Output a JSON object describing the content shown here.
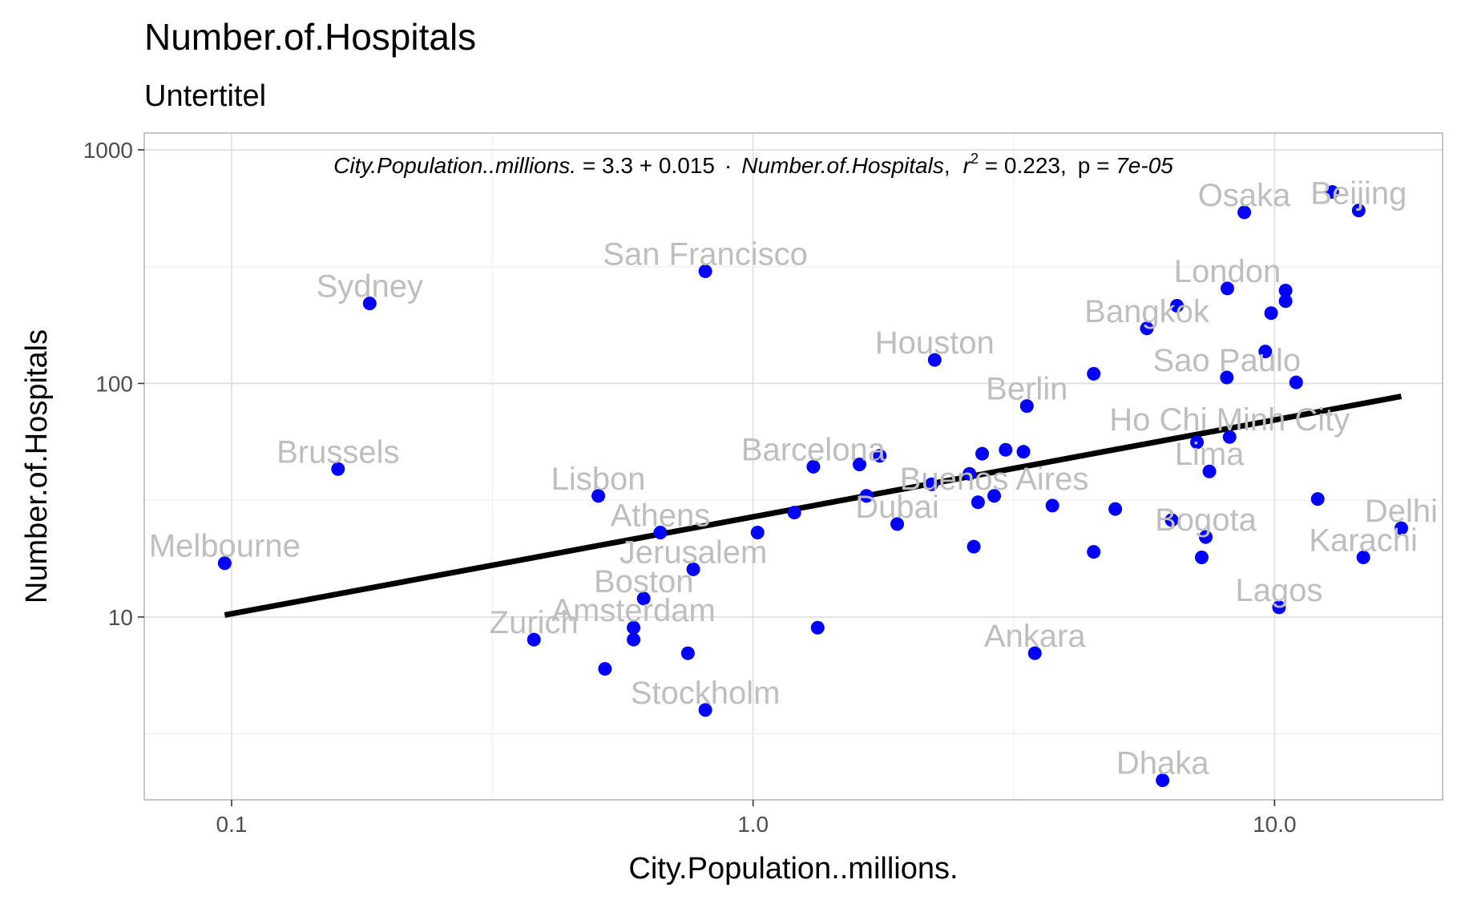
{
  "chart_data": {
    "type": "scatter",
    "title": "Number.of.Hospitals",
    "subtitle": "Untertitel",
    "xlabel": "City.Population..millions.",
    "ylabel": "Number.of.Hospitals",
    "x_scale": "log10",
    "y_scale": "log10",
    "xlim": [
      0.068,
      21.0
    ],
    "ylim": [
      1.65,
      1180
    ],
    "x_ticks": [
      {
        "value": 0.1,
        "label": "0.1"
      },
      {
        "value": 1.0,
        "label": "1.0"
      },
      {
        "value": 10.0,
        "label": "10.0"
      }
    ],
    "y_ticks": [
      {
        "value": 10,
        "label": "10"
      },
      {
        "value": 100,
        "label": "100"
      },
      {
        "value": 1000,
        "label": "1000"
      }
    ],
    "grid": true,
    "point_color": "#0000ff",
    "label_color": "#bebebe",
    "line_color": "#000000",
    "annotation": {
      "lhs": "City.Population..millions.",
      "equals_intercept": " = 3.3 + 0.015",
      "dot": "·",
      "rhs": "Number.of.Hospitals",
      "sep1": ",",
      "r": "r",
      "r_exp": "2",
      "r_val": " = 0.223,",
      "p_label": "p = ",
      "p_val": "7e-05"
    },
    "fit_line": {
      "x": [
        0.097,
        17.5
      ],
      "y": [
        10.2,
        88
      ]
    },
    "labeled_points": [
      {
        "label": "Melbourne",
        "x": 0.097,
        "y": 17
      },
      {
        "label": "Sydney",
        "x": 0.184,
        "y": 220
      },
      {
        "label": "Brussels",
        "x": 0.16,
        "y": 43
      },
      {
        "label": "San Francisco",
        "x": 0.81,
        "y": 302
      },
      {
        "label": "Lisbon",
        "x": 0.505,
        "y": 33
      },
      {
        "label": "Athens",
        "x": 0.664,
        "y": 23
      },
      {
        "label": "Jerusalem",
        "x": 0.768,
        "y": 16
      },
      {
        "label": "Boston",
        "x": 0.617,
        "y": 12
      },
      {
        "label": "Zurich",
        "x": 0.38,
        "y": 8
      },
      {
        "label": "Amsterdam",
        "x": 0.59,
        "y": 9
      },
      {
        "label": "Stockholm",
        "x": 0.81,
        "y": 4
      },
      {
        "label": "Barcelona",
        "x": 1.305,
        "y": 44
      },
      {
        "label": "Houston",
        "x": 2.23,
        "y": 126
      },
      {
        "label": "Dubai",
        "x": 1.89,
        "y": 25
      },
      {
        "label": "Buenos Aires",
        "x": 2.9,
        "y": 33
      },
      {
        "label": "Berlin",
        "x": 3.35,
        "y": 80
      },
      {
        "label": "Ankara",
        "x": 3.47,
        "y": 7
      },
      {
        "label": "Bangkok",
        "x": 5.69,
        "y": 172
      },
      {
        "label": "London",
        "x": 8.12,
        "y": 255
      },
      {
        "label": "Osaka",
        "x": 8.75,
        "y": 540
      },
      {
        "label": "Beijing",
        "x": 14.5,
        "y": 550
      },
      {
        "label": "Sao Paulo",
        "x": 8.1,
        "y": 106
      },
      {
        "label": "Ho Chi Minh City",
        "x": 8.2,
        "y": 59
      },
      {
        "label": "Lima",
        "x": 7.5,
        "y": 42
      },
      {
        "label": "Bogota",
        "x": 7.38,
        "y": 22
      },
      {
        "label": "Lagos",
        "x": 10.2,
        "y": 11
      },
      {
        "label": "Karachi",
        "x": 14.8,
        "y": 18
      },
      {
        "label": "Delhi",
        "x": 17.5,
        "y": 24
      },
      {
        "label": "Dhaka",
        "x": 6.1,
        "y": 2
      }
    ],
    "other_points": [
      {
        "x": 0.52,
        "y": 6
      },
      {
        "x": 0.59,
        "y": 8
      },
      {
        "x": 0.75,
        "y": 7
      },
      {
        "x": 1.02,
        "y": 23
      },
      {
        "x": 1.2,
        "y": 28
      },
      {
        "x": 1.33,
        "y": 9
      },
      {
        "x": 1.6,
        "y": 45
      },
      {
        "x": 1.65,
        "y": 33
      },
      {
        "x": 1.75,
        "y": 49
      },
      {
        "x": 2.2,
        "y": 37
      },
      {
        "x": 2.6,
        "y": 41
      },
      {
        "x": 2.7,
        "y": 31
      },
      {
        "x": 2.75,
        "y": 50
      },
      {
        "x": 2.65,
        "y": 20
      },
      {
        "x": 3.05,
        "y": 52
      },
      {
        "x": 3.3,
        "y": 51
      },
      {
        "x": 3.75,
        "y": 30
      },
      {
        "x": 4.5,
        "y": 110
      },
      {
        "x": 4.5,
        "y": 19
      },
      {
        "x": 4.95,
        "y": 29
      },
      {
        "x": 6.35,
        "y": 26
      },
      {
        "x": 6.5,
        "y": 215
      },
      {
        "x": 7.1,
        "y": 56
      },
      {
        "x": 7.25,
        "y": 18
      },
      {
        "x": 9.6,
        "y": 137
      },
      {
        "x": 9.85,
        "y": 200
      },
      {
        "x": 10.5,
        "y": 250
      },
      {
        "x": 10.5,
        "y": 225
      },
      {
        "x": 11.0,
        "y": 101
      },
      {
        "x": 12.1,
        "y": 32
      },
      {
        "x": 12.9,
        "y": 660
      }
    ]
  }
}
